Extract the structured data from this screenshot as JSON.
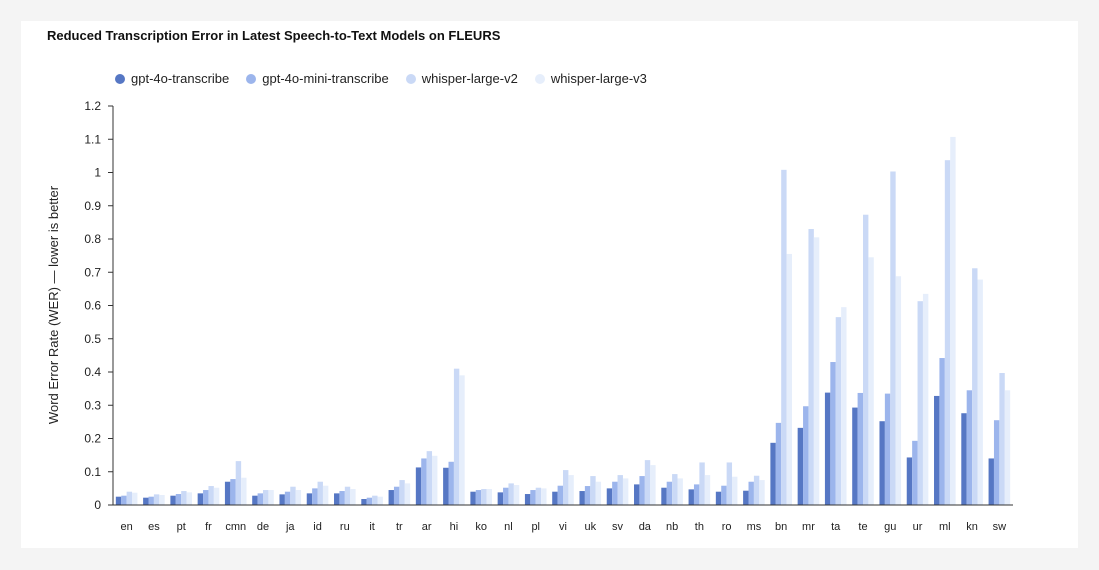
{
  "colors": {
    "series": [
      "#5677c4",
      "#9cb5ec",
      "#cad9f6",
      "#e6eefb"
    ],
    "axis": "#333333"
  },
  "chart_data": {
    "type": "bar",
    "title": "Reduced Transcription Error in Latest Speech-to-Text Models on FLEURS",
    "xlabel": "",
    "ylabel": "Word Error Rate (WER) — lower is better",
    "ylim": [
      0,
      1.2
    ],
    "yticks": [
      "0",
      "0.1",
      "0.2",
      "0.3",
      "0.4",
      "0.5",
      "0.6",
      "0.7",
      "0.8",
      "0.9",
      "1",
      "1.1",
      "1.2"
    ],
    "legend_position": "top-left",
    "grid": false,
    "categories": [
      "en",
      "es",
      "pt",
      "fr",
      "cmn",
      "de",
      "ja",
      "id",
      "ru",
      "it",
      "tr",
      "ar",
      "hi",
      "ko",
      "nl",
      "pl",
      "vi",
      "uk",
      "sv",
      "da",
      "nb",
      "th",
      "ro",
      "ms",
      "bn",
      "mr",
      "ta",
      "te",
      "gu",
      "ur",
      "ml",
      "kn",
      "sw"
    ],
    "series": [
      {
        "name": "gpt-4o-transcribe",
        "values": [
          0.025,
          0.022,
          0.028,
          0.035,
          0.07,
          0.028,
          0.032,
          0.035,
          0.035,
          0.018,
          0.045,
          0.113,
          0.112,
          0.04,
          0.038,
          0.033,
          0.04,
          0.042,
          0.05,
          0.062,
          0.052,
          0.047,
          0.04,
          0.043,
          0.187,
          0.232,
          0.338,
          0.293,
          0.252,
          0.143,
          0.328,
          0.276,
          0.14
        ]
      },
      {
        "name": "gpt-4o-mini-transcribe",
        "values": [
          0.028,
          0.025,
          0.033,
          0.045,
          0.078,
          0.035,
          0.04,
          0.05,
          0.042,
          0.022,
          0.055,
          0.14,
          0.13,
          0.045,
          0.052,
          0.045,
          0.058,
          0.057,
          0.07,
          0.087,
          0.07,
          0.062,
          0.058,
          0.07,
          0.247,
          0.297,
          0.43,
          0.337,
          0.335,
          0.193,
          0.442,
          0.345,
          0.255
        ]
      },
      {
        "name": "whisper-large-v2",
        "values": [
          0.04,
          0.032,
          0.042,
          0.057,
          0.132,
          0.045,
          0.055,
          0.07,
          0.055,
          0.028,
          0.075,
          0.162,
          0.41,
          0.048,
          0.065,
          0.052,
          0.105,
          0.087,
          0.09,
          0.135,
          0.093,
          0.128,
          0.128,
          0.088,
          1.008,
          0.83,
          0.565,
          0.873,
          1.003,
          0.613,
          1.037,
          0.712,
          0.397
        ]
      },
      {
        "name": "whisper-large-v3",
        "values": [
          0.037,
          0.03,
          0.038,
          0.052,
          0.082,
          0.045,
          0.045,
          0.058,
          0.048,
          0.025,
          0.065,
          0.148,
          0.39,
          0.048,
          0.06,
          0.05,
          0.09,
          0.07,
          0.08,
          0.12,
          0.08,
          0.09,
          0.085,
          0.075,
          0.755,
          0.805,
          0.595,
          0.745,
          0.688,
          0.635,
          1.107,
          0.678,
          0.345
        ]
      }
    ]
  }
}
